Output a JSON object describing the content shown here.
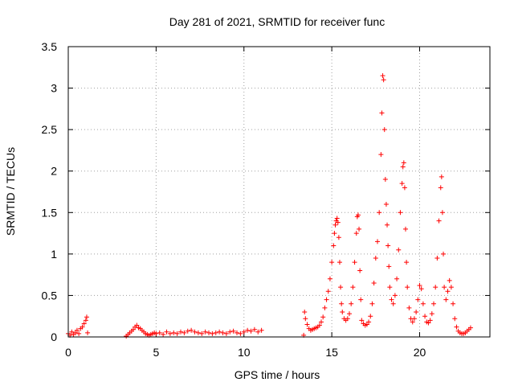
{
  "chart_data": {
    "type": "scatter",
    "title": "Day 281 of 2021, SRMTID for receiver func",
    "xlabel": "GPS time / hours",
    "ylabel": "SRMTID / TECUs",
    "xlim": [
      0,
      24
    ],
    "ylim": [
      0,
      3.5
    ],
    "xticks": [
      0,
      5,
      10,
      15,
      20
    ],
    "xtick_labels": [
      "0",
      "5",
      "10",
      "15",
      "20"
    ],
    "yticks": [
      0,
      0.5,
      1,
      1.5,
      2,
      2.5,
      3,
      3.5
    ],
    "ytick_labels": [
      "0",
      "0.5",
      "1",
      "1.5",
      "2",
      "2.5",
      "3",
      "3.5"
    ],
    "grid": true,
    "marker": "+",
    "series": [
      {
        "name": "SRMTID",
        "color": "#ff0000",
        "segments": [
          {
            "x": [
              0.0,
              0.1,
              0.2,
              0.3,
              0.4,
              0.5,
              0.6,
              0.7,
              0.8,
              0.9,
              1.0,
              1.05,
              1.1
            ],
            "y": [
              0.04,
              0.02,
              0.06,
              0.03,
              0.05,
              0.08,
              0.04,
              0.1,
              0.12,
              0.16,
              0.2,
              0.24,
              0.05
            ]
          },
          {
            "x": [
              3.3,
              3.4,
              3.5,
              3.6,
              3.7,
              3.8,
              3.9,
              4.0,
              4.1,
              4.2,
              4.3,
              4.4,
              4.5,
              4.6,
              4.7,
              4.8,
              4.9,
              5.0,
              5.2,
              5.4,
              5.6,
              5.8,
              6.0,
              6.2,
              6.4,
              6.6,
              6.8,
              7.0,
              7.2,
              7.4,
              7.6,
              7.8,
              8.0,
              8.2,
              8.4,
              8.6,
              8.8,
              9.0,
              9.2,
              9.4,
              9.6,
              9.8,
              10.0,
              10.2,
              10.4,
              10.6,
              10.8,
              11.0
            ],
            "y": [
              0.01,
              0.03,
              0.05,
              0.07,
              0.09,
              0.12,
              0.14,
              0.11,
              0.1,
              0.08,
              0.06,
              0.04,
              0.03,
              0.02,
              0.03,
              0.04,
              0.05,
              0.04,
              0.05,
              0.03,
              0.06,
              0.04,
              0.05,
              0.04,
              0.06,
              0.05,
              0.07,
              0.08,
              0.06,
              0.05,
              0.04,
              0.06,
              0.05,
              0.04,
              0.05,
              0.06,
              0.05,
              0.04,
              0.06,
              0.07,
              0.05,
              0.04,
              0.06,
              0.08,
              0.07,
              0.09,
              0.06,
              0.08
            ]
          },
          {
            "x": [
              13.4,
              13.45,
              13.5,
              13.6,
              13.7,
              13.8,
              13.9,
              14.0,
              14.1,
              14.2,
              14.3,
              14.4,
              14.5,
              14.6,
              14.7,
              14.8,
              14.9,
              15.0,
              15.1,
              15.15,
              15.2,
              15.25,
              15.3,
              15.35,
              15.4,
              15.45,
              15.5,
              15.55,
              15.6,
              15.7,
              15.8,
              15.9,
              16.0,
              16.1,
              16.2,
              16.3,
              16.4,
              16.45,
              16.5,
              16.55,
              16.6,
              16.65,
              16.7,
              16.8,
              16.9,
              17.0,
              17.1,
              17.2,
              17.3,
              17.4,
              17.5,
              17.6,
              17.7,
              17.8,
              17.85,
              17.9,
              17.95,
              18.0,
              18.05,
              18.1,
              18.15,
              18.2,
              18.25,
              18.3,
              18.4,
              18.5,
              18.6,
              18.7,
              18.8,
              18.9,
              19.0,
              19.05,
              19.1,
              19.15,
              19.2,
              19.25,
              19.3,
              19.4,
              19.5,
              19.6,
              19.7,
              19.8,
              19.9,
              20.0,
              20.1,
              20.2,
              20.3,
              20.4,
              20.5,
              20.6,
              20.7,
              20.8,
              20.9,
              21.0,
              21.1,
              21.2,
              21.25,
              21.3,
              21.35,
              21.4,
              21.5,
              21.6,
              21.7,
              21.8,
              21.9,
              22.0,
              22.1,
              22.2,
              22.3,
              22.4,
              22.5,
              22.6,
              22.7,
              22.8,
              22.9
            ],
            "y": [
              0.02,
              0.3,
              0.22,
              0.15,
              0.1,
              0.08,
              0.09,
              0.1,
              0.11,
              0.12,
              0.14,
              0.18,
              0.24,
              0.35,
              0.45,
              0.55,
              0.7,
              0.9,
              1.1,
              1.25,
              1.35,
              1.4,
              1.43,
              1.38,
              1.2,
              0.9,
              0.6,
              0.4,
              0.3,
              0.22,
              0.2,
              0.22,
              0.28,
              0.4,
              0.6,
              0.9,
              1.25,
              1.45,
              1.47,
              1.3,
              0.8,
              0.45,
              0.2,
              0.16,
              0.14,
              0.15,
              0.18,
              0.25,
              0.4,
              0.65,
              0.95,
              1.15,
              1.5,
              2.2,
              2.7,
              3.15,
              3.1,
              2.5,
              1.9,
              1.6,
              1.35,
              1.1,
              0.85,
              0.6,
              0.45,
              0.4,
              0.5,
              0.7,
              1.05,
              1.5,
              1.85,
              2.05,
              2.1,
              1.8,
              1.3,
              0.9,
              0.6,
              0.35,
              0.22,
              0.18,
              0.22,
              0.3,
              0.45,
              0.62,
              0.58,
              0.4,
              0.25,
              0.18,
              0.17,
              0.2,
              0.28,
              0.4,
              0.6,
              0.95,
              1.4,
              1.8,
              1.93,
              1.5,
              1.0,
              0.6,
              0.45,
              0.55,
              0.68,
              0.6,
              0.4,
              0.22,
              0.12,
              0.07,
              0.05,
              0.04,
              0.04,
              0.05,
              0.07,
              0.09,
              0.11
            ]
          }
        ]
      }
    ]
  }
}
